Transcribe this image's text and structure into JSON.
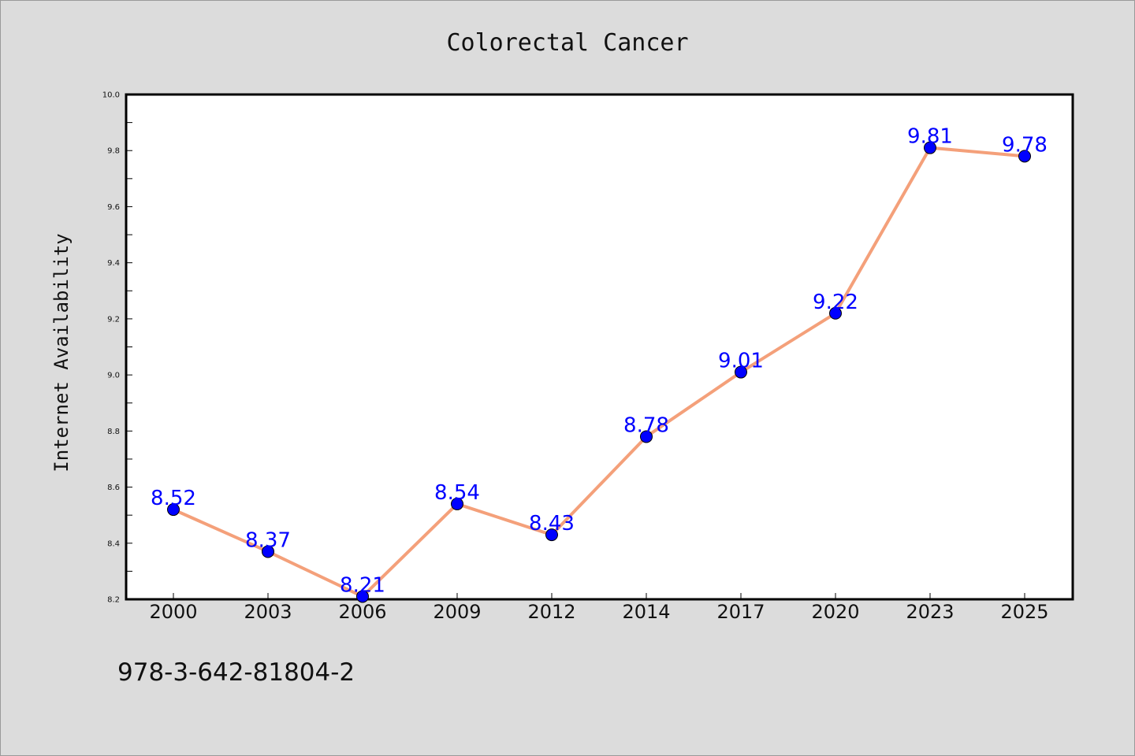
{
  "chart_data": {
    "type": "line",
    "title": "Colorectal Cancer",
    "xlabel": "",
    "ylabel": "Internet Availability",
    "categories": [
      "2000",
      "2003",
      "2006",
      "2009",
      "2012",
      "2014",
      "2017",
      "2020",
      "2023",
      "2025"
    ],
    "series": [
      {
        "values": [
          8.52,
          8.37,
          8.21,
          8.54,
          8.43,
          8.78,
          9.01,
          9.22,
          9.81,
          9.78
        ],
        "data_labels": [
          "8.52",
          "8.37",
          "8.21",
          "8.54",
          "8.43",
          "8.78",
          "9.01",
          "9.22",
          "9.81",
          "9.78"
        ],
        "line_color": "#f4a07a",
        "marker_color": "#0000ff"
      }
    ],
    "ylim": [
      8.2,
      10.0
    ],
    "yticks": [
      "8.2",
      "8.4",
      "8.6",
      "8.8",
      "9.0",
      "9.2",
      "9.4",
      "9.6",
      "9.8",
      "10.0"
    ],
    "grid": false,
    "legend": "none"
  },
  "footnote": "978-3-642-81804-2",
  "colors": {
    "background": "#dcdcdc",
    "plot_area": "#ffffff",
    "line": "#f4a07a",
    "marker": "#0000ff",
    "data_label": "#0000ff"
  }
}
